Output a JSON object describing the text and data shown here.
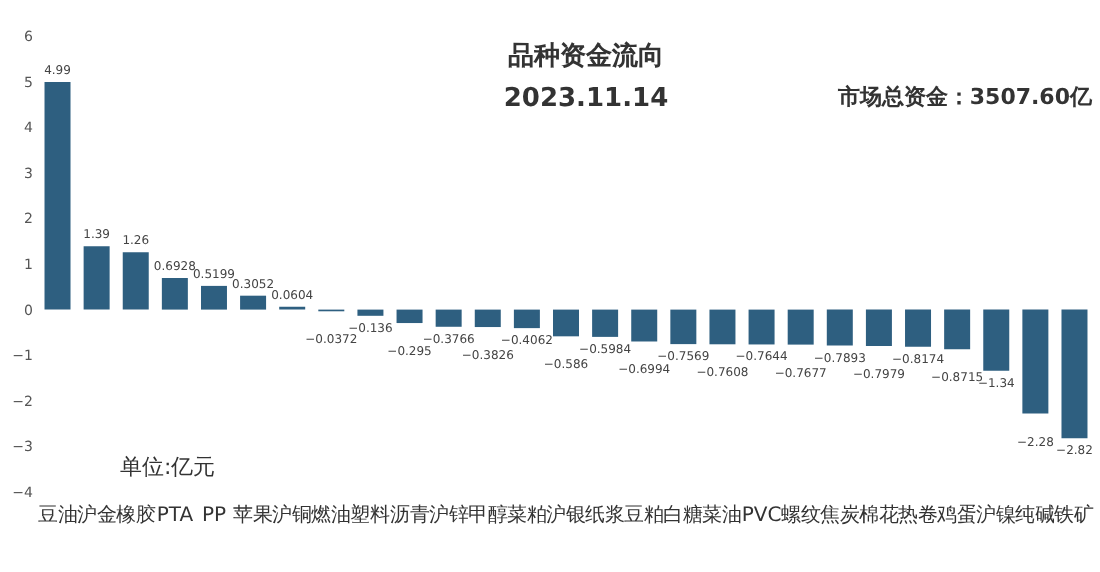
{
  "chart_data": {
    "type": "bar",
    "title": "品种资金流向",
    "subtitle": "2023.11.14",
    "annotations": [
      "市场总资金：3507.60亿",
      "单位:亿元"
    ],
    "categories": [
      "豆油",
      "沪金",
      "橡胶",
      "PTA",
      "PP",
      "苹果",
      "沪铜",
      "燃油",
      "塑料",
      "沥青",
      "沪锌",
      "甲醇",
      "菜粕",
      "沪银",
      "纸浆",
      "豆粕",
      "白糖",
      "菜油",
      "PVC",
      "螺纹",
      "焦炭",
      "棉花",
      "热卷",
      "鸡蛋",
      "沪镍",
      "纯碱",
      "铁矿"
    ],
    "series": [
      {
        "color": "#2e5f80",
        "values": [
          4.99,
          1.39,
          1.26,
          0.6928,
          0.5199,
          0.3052,
          0.0604,
          -0.0372,
          -0.136,
          -0.295,
          -0.3766,
          -0.3826,
          -0.4062,
          -0.586,
          -0.5984,
          -0.6994,
          -0.7569,
          -0.7608,
          -0.7644,
          -0.7677,
          -0.7893,
          -0.7979,
          -0.8174,
          -0.8715,
          -1.34,
          -2.28,
          -2.82
        ]
      }
    ],
    "ylim": [
      -4,
      6
    ],
    "yticks": [
      -4,
      -3,
      -2,
      -1,
      0,
      1,
      2,
      3,
      4,
      5,
      6
    ],
    "data_labels": true,
    "grid": false
  }
}
